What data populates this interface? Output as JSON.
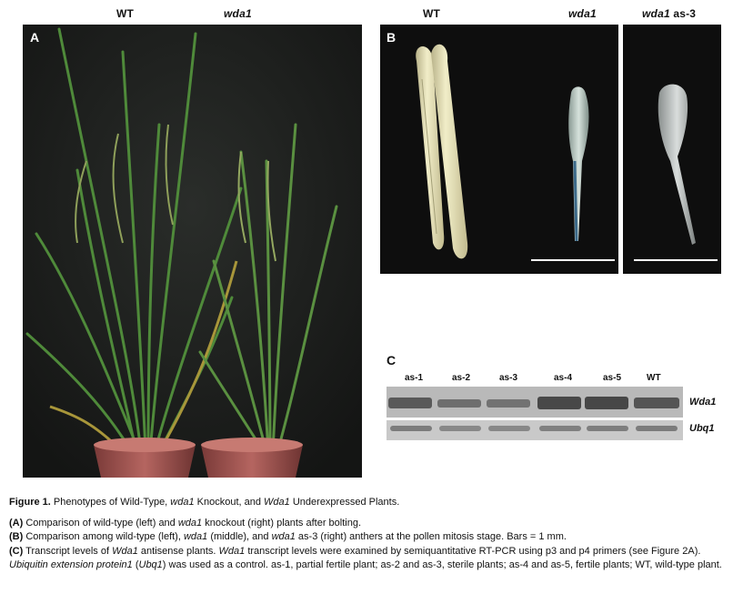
{
  "panelA": {
    "letter": "A",
    "label_wt": "WT",
    "label_mut": "wda1"
  },
  "panelB": {
    "letter": "B",
    "label_wt": "WT",
    "label_mut": "wda1",
    "label_as_gene": "wda1",
    "label_as_suffix": " as-3"
  },
  "panelC": {
    "letter": "C",
    "lanes": [
      "as-1",
      "as-2",
      "as-3",
      "as-4",
      "as-5",
      "WT"
    ],
    "row_labels": [
      "Wda1",
      "Ubq1"
    ]
  },
  "caption": {
    "title": {
      "fig": "Figure 1.",
      "t1": "  Phenotypes of Wild-Type, ",
      "g1": "wda1",
      "t2": " Knockout, and ",
      "g2": "Wda1",
      "t3": " Underexpressed Plants."
    },
    "a": {
      "lbl": "(A)",
      "t1": " Comparison of wild-type (left) and ",
      "g1": "wda1",
      "t2": " knockout (right) plants after bolting."
    },
    "b": {
      "lbl": "(B)",
      "t1": " Comparison among wild-type (left), ",
      "g1": "wda1",
      "t2": " (middle), and ",
      "g2": "wda1",
      "t3": " as-3 (right) anthers at the pollen mitosis stage. Bars = 1 mm."
    },
    "c": {
      "lbl": "(C)",
      "t1": " Transcript levels of ",
      "g1": "Wda1",
      "t2": " antisense plants. ",
      "g2": "Wda1",
      "t3": " transcript levels were examined by semiquantitative RT-PCR using p3 and p4 primers (see Figure 2A). ",
      "g3": "Ubiquitin extension protein1",
      "t4": " (",
      "g4": "Ubq1",
      "t5": ") was used as a control. as-1, partial fertile plant; as-2 and as-3, sterile plants; as-4 and as-5, fertile plants; WT, wild-type plant."
    }
  }
}
